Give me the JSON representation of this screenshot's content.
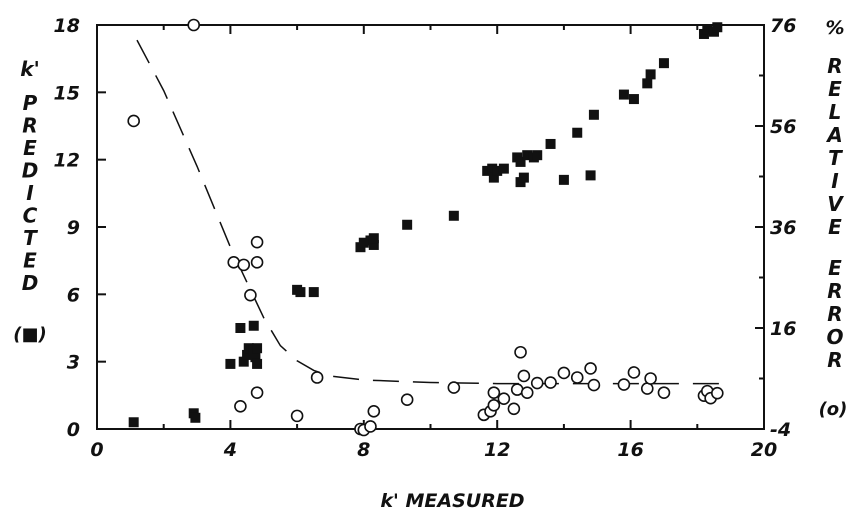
{
  "chart_data": {
    "type": "scatter",
    "xlabel": "k' MEASURED",
    "ylabel_left": "k' PREDICTED",
    "ylabel_left_marker": "(■)",
    "ylabel_right": "RELATIVE ERROR",
    "ylabel_right_unit": "%",
    "ylabel_right_marker": "(o)",
    "xlim": [
      0,
      20
    ],
    "ylim_left": [
      0,
      18
    ],
    "ylim_right": [
      -4,
      76
    ],
    "x_ticks": [
      "0",
      "4",
      "8",
      "12",
      "16",
      "20"
    ],
    "x_tick_values": [
      0,
      4,
      8,
      12,
      16,
      20
    ],
    "x_minor_ticks": [
      2,
      6,
      10,
      14,
      18
    ],
    "y_left_ticks": [
      "0",
      "3",
      "6",
      "9",
      "12",
      "15",
      "18"
    ],
    "y_left_tick_values": [
      0,
      3,
      6,
      9,
      12,
      15,
      18
    ],
    "y_right_ticks": [
      "-4",
      "16",
      "36",
      "56",
      "76"
    ],
    "y_right_tick_values": [
      -4,
      16,
      36,
      56,
      76
    ],
    "grid": false,
    "series": [
      {
        "marker": "filled-square",
        "axis": "left",
        "points": [
          [
            1.1,
            0.3
          ],
          [
            2.9,
            0.7
          ],
          [
            2.95,
            0.5
          ],
          [
            4.0,
            2.9
          ],
          [
            4.3,
            4.5
          ],
          [
            4.4,
            3.0
          ],
          [
            4.5,
            3.3
          ],
          [
            4.55,
            3.6
          ],
          [
            4.7,
            3.5
          ],
          [
            4.75,
            3.2
          ],
          [
            4.8,
            2.9
          ],
          [
            4.7,
            4.6
          ],
          [
            4.8,
            3.6
          ],
          [
            6.0,
            6.2
          ],
          [
            6.1,
            6.1
          ],
          [
            6.5,
            6.1
          ],
          [
            7.9,
            8.1
          ],
          [
            8.0,
            8.3
          ],
          [
            8.2,
            8.4
          ],
          [
            8.3,
            8.2
          ],
          [
            8.3,
            8.5
          ],
          [
            9.3,
            9.1
          ],
          [
            10.7,
            9.5
          ],
          [
            11.7,
            11.5
          ],
          [
            11.85,
            11.6
          ],
          [
            11.9,
            11.2
          ],
          [
            12.0,
            11.5
          ],
          [
            12.2,
            11.6
          ],
          [
            12.6,
            12.1
          ],
          [
            12.7,
            11.9
          ],
          [
            12.7,
            11.0
          ],
          [
            12.8,
            11.2
          ],
          [
            12.9,
            12.2
          ],
          [
            13.1,
            12.1
          ],
          [
            13.2,
            12.2
          ],
          [
            13.6,
            12.7
          ],
          [
            14.0,
            11.1
          ],
          [
            14.4,
            13.2
          ],
          [
            14.8,
            11.3
          ],
          [
            14.9,
            14.0
          ],
          [
            15.8,
            14.9
          ],
          [
            16.1,
            14.7
          ],
          [
            16.5,
            15.4
          ],
          [
            16.6,
            15.8
          ],
          [
            17.0,
            16.3
          ],
          [
            18.2,
            17.6
          ],
          [
            18.3,
            17.8
          ],
          [
            18.5,
            17.7
          ],
          [
            18.6,
            17.9
          ]
        ]
      },
      {
        "marker": "open-circle",
        "axis": "right",
        "points": [
          [
            1.1,
            57
          ],
          [
            2.9,
            76
          ],
          [
            4.1,
            29
          ],
          [
            4.3,
            0.5
          ],
          [
            4.4,
            28.5
          ],
          [
            4.6,
            22.5
          ],
          [
            4.8,
            29
          ],
          [
            4.8,
            33
          ],
          [
            4.8,
            3.2
          ],
          [
            6.6,
            6.2
          ],
          [
            6.0,
            -1.4
          ],
          [
            7.9,
            -4
          ],
          [
            8.0,
            -4.2
          ],
          [
            8.2,
            -3.5
          ],
          [
            8.3,
            -0.5
          ],
          [
            9.3,
            1.8
          ],
          [
            10.7,
            4.2
          ],
          [
            11.6,
            -1.2
          ],
          [
            11.8,
            -0.5
          ],
          [
            11.9,
            0.7
          ],
          [
            11.9,
            3.2
          ],
          [
            12.2,
            2
          ],
          [
            12.5,
            0
          ],
          [
            12.6,
            3.8
          ],
          [
            12.7,
            11.2
          ],
          [
            12.8,
            6.5
          ],
          [
            12.9,
            3.2
          ],
          [
            13.2,
            5.1
          ],
          [
            13.6,
            5.2
          ],
          [
            14.0,
            7.1
          ],
          [
            14.4,
            6.2
          ],
          [
            14.8,
            8
          ],
          [
            14.9,
            4.7
          ],
          [
            15.8,
            4.8
          ],
          [
            16.1,
            7.2
          ],
          [
            16.5,
            4
          ],
          [
            16.6,
            6
          ],
          [
            17.0,
            3.2
          ],
          [
            18.2,
            2.6
          ],
          [
            18.3,
            3.5
          ],
          [
            18.4,
            2.1
          ],
          [
            18.6,
            3.1
          ]
        ]
      },
      {
        "marker": "dashed-line",
        "axis": "right",
        "points": [
          [
            1.2,
            73
          ],
          [
            2.0,
            63
          ],
          [
            3.0,
            48
          ],
          [
            4.0,
            32
          ],
          [
            4.5,
            25
          ],
          [
            5.0,
            18
          ],
          [
            5.5,
            12.5
          ],
          [
            6.0,
            9.5
          ],
          [
            6.5,
            7.6
          ],
          [
            7.0,
            6.5
          ],
          [
            8.0,
            5.7
          ],
          [
            10.0,
            5.2
          ],
          [
            12.0,
            5
          ],
          [
            14.0,
            5
          ],
          [
            16.0,
            5
          ],
          [
            19.0,
            5
          ]
        ]
      }
    ]
  }
}
